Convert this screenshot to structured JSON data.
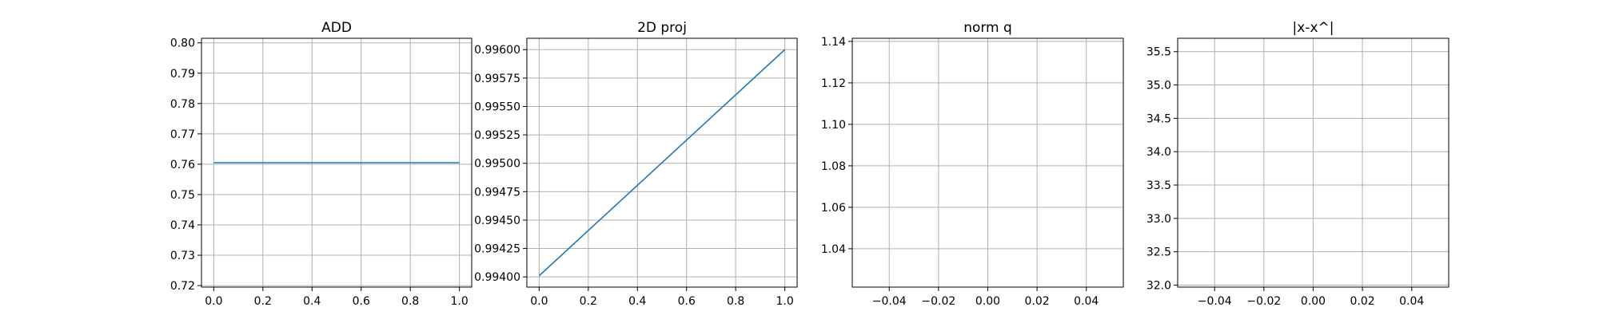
{
  "chart_data": [
    {
      "type": "line",
      "title": "ADD",
      "xlim": [
        -0.05,
        1.05
      ],
      "ylim": [
        0.7195,
        0.8015
      ],
      "xticks": [
        0.0,
        0.2,
        0.4,
        0.6,
        0.8,
        1.0
      ],
      "xtick_labels": [
        "0.0",
        "0.2",
        "0.4",
        "0.6",
        "0.8",
        "1.0"
      ],
      "yticks": [
        0.72,
        0.73,
        0.74,
        0.75,
        0.76,
        0.77,
        0.78,
        0.79,
        0.8
      ],
      "ytick_labels": [
        "0.72",
        "0.73",
        "0.74",
        "0.75",
        "0.76",
        "0.77",
        "0.78",
        "0.79",
        "0.80"
      ],
      "grid": true,
      "series": [
        {
          "x": [
            0.0,
            1.0
          ],
          "y": [
            0.7605,
            0.7605
          ],
          "color": "#1f77b4"
        }
      ]
    },
    {
      "type": "line",
      "title": "2D proj",
      "xlim": [
        -0.05,
        1.05
      ],
      "ylim": [
        0.99391,
        0.9961
      ],
      "xticks": [
        0.0,
        0.2,
        0.4,
        0.6,
        0.8,
        1.0
      ],
      "xtick_labels": [
        "0.0",
        "0.2",
        "0.4",
        "0.6",
        "0.8",
        "1.0"
      ],
      "yticks": [
        0.994,
        0.99425,
        0.9945,
        0.99475,
        0.995,
        0.99525,
        0.9955,
        0.99575,
        0.996
      ],
      "ytick_labels": [
        "0.99400",
        "0.99425",
        "0.99450",
        "0.99475",
        "0.99500",
        "0.99525",
        "0.99550",
        "0.99575",
        "0.99600"
      ],
      "grid": true,
      "series": [
        {
          "x": [
            0.0,
            1.0
          ],
          "y": [
            0.99401,
            0.996
          ],
          "color": "#1f77b4"
        }
      ]
    },
    {
      "type": "line",
      "title": "norm q",
      "xlim": [
        -0.055,
        0.055
      ],
      "ylim": [
        1.0215,
        1.1415
      ],
      "xticks": [
        -0.04,
        -0.02,
        0.0,
        0.02,
        0.04
      ],
      "xtick_labels": [
        "−0.04",
        "−0.02",
        "0.00",
        "0.02",
        "0.04"
      ],
      "yticks": [
        1.04,
        1.06,
        1.08,
        1.1,
        1.12,
        1.14
      ],
      "ytick_labels": [
        "1.04",
        "1.06",
        "1.08",
        "1.10",
        "1.12",
        "1.14"
      ],
      "grid": true,
      "series": []
    },
    {
      "type": "line",
      "title": "|x-x^|",
      "xlim": [
        -0.055,
        0.055
      ],
      "ylim": [
        31.97,
        35.7
      ],
      "xticks": [
        -0.04,
        -0.02,
        0.0,
        0.02,
        0.04
      ],
      "xtick_labels": [
        "−0.04",
        "−0.02",
        "0.00",
        "0.02",
        "0.04"
      ],
      "yticks": [
        32.0,
        32.5,
        33.0,
        33.5,
        34.0,
        34.5,
        35.0,
        35.5
      ],
      "ytick_labels": [
        "32.0",
        "32.5",
        "33.0",
        "33.5",
        "34.0",
        "34.5",
        "35.0",
        "35.5"
      ],
      "grid": true,
      "series": []
    }
  ]
}
